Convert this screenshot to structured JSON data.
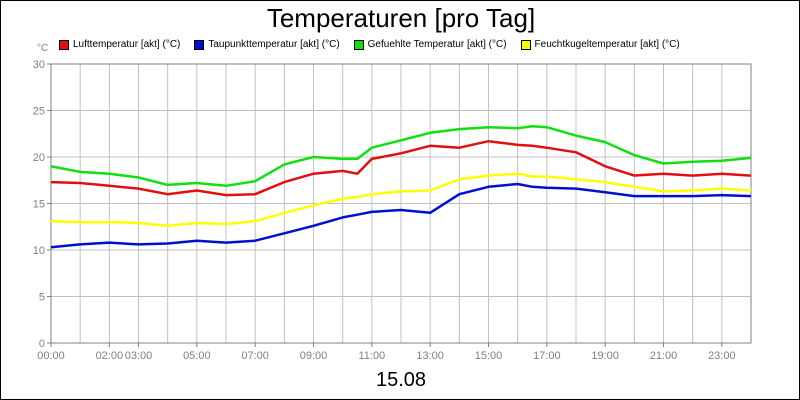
{
  "chart_data": {
    "type": "line",
    "title": "Temperaturen [pro Tag]",
    "y_unit": "°C",
    "date_label": "15.08",
    "ylim": [
      0,
      30
    ],
    "yticks": [
      0,
      5,
      10,
      15,
      20,
      25,
      30
    ],
    "xlim": [
      0,
      24
    ],
    "xticks": [
      {
        "x": 0,
        "label": "00:00"
      },
      {
        "x": 2,
        "label": "02:00"
      },
      {
        "x": 3,
        "label": "03:00"
      },
      {
        "x": 5,
        "label": "05:00"
      },
      {
        "x": 7,
        "label": "07:00"
      },
      {
        "x": 9,
        "label": "09:00"
      },
      {
        "x": 11,
        "label": "11:00"
      },
      {
        "x": 13,
        "label": "13:00"
      },
      {
        "x": 15,
        "label": "15:00"
      },
      {
        "x": 17,
        "label": "17:00"
      },
      {
        "x": 19,
        "label": "19:00"
      },
      {
        "x": 21,
        "label": "21:00"
      },
      {
        "x": 23,
        "label": "23:00"
      }
    ],
    "grid": true,
    "legend_position": "top",
    "x": [
      0,
      1,
      2,
      3,
      4,
      5,
      6,
      7,
      8,
      9,
      10,
      10.5,
      11,
      12,
      13,
      14,
      15,
      16,
      16.5,
      17,
      18,
      19,
      20,
      21,
      22,
      23,
      24
    ],
    "series": [
      {
        "name": "Lufttemperatur [akt] (°C)",
        "color": "#e01010",
        "values": [
          17.3,
          17.2,
          16.9,
          16.6,
          16.0,
          16.4,
          15.9,
          16.0,
          17.3,
          18.2,
          18.5,
          18.2,
          19.8,
          20.4,
          21.2,
          21.0,
          21.7,
          21.3,
          21.2,
          21.0,
          20.5,
          19.0,
          18.0,
          18.2,
          18.0,
          18.2,
          18.0
        ]
      },
      {
        "name": "Taupunkttemperatur [akt] (°C)",
        "color": "#0010d0",
        "values": [
          10.3,
          10.6,
          10.8,
          10.6,
          10.7,
          11.0,
          10.8,
          11.0,
          11.8,
          12.6,
          13.5,
          13.8,
          14.1,
          14.3,
          14.0,
          16.0,
          16.8,
          17.1,
          16.8,
          16.7,
          16.6,
          16.2,
          15.8,
          15.8,
          15.8,
          15.9,
          15.8
        ]
      },
      {
        "name": "Gefuehlte Temperatur [akt] (°C)",
        "color": "#10e010",
        "values": [
          19.0,
          18.4,
          18.2,
          17.8,
          17.0,
          17.2,
          16.9,
          17.4,
          19.2,
          20.0,
          19.8,
          19.8,
          21.0,
          21.8,
          22.6,
          23.0,
          23.2,
          23.1,
          23.3,
          23.2,
          22.3,
          21.6,
          20.2,
          19.3,
          19.5,
          19.6,
          19.9
        ]
      },
      {
        "name": "Feuchtkugeltemperatur [akt] (°C)",
        "color": "#ffff00",
        "values": [
          13.1,
          13.0,
          13.0,
          12.9,
          12.6,
          12.9,
          12.8,
          13.1,
          14.0,
          14.8,
          15.5,
          15.7,
          16.0,
          16.3,
          16.4,
          17.6,
          18.0,
          18.2,
          17.9,
          17.9,
          17.6,
          17.3,
          16.8,
          16.3,
          16.4,
          16.6,
          16.4
        ]
      }
    ]
  }
}
